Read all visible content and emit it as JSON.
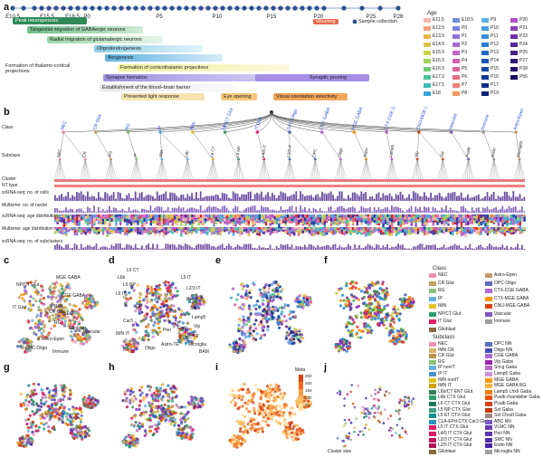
{
  "panel_labels": [
    "a",
    "b",
    "c",
    "d",
    "e",
    "f",
    "g",
    "h",
    "i",
    "j"
  ],
  "timeline": {
    "ticks": [
      "E10.5",
      "E15.5",
      "E18.5",
      "P0",
      "P5",
      "P10",
      "P15",
      "P20",
      "P25",
      "P28"
    ],
    "ticks_small": [
      "E11.5"
    ],
    "sample_collection_label": "Sample collection",
    "weaning_label": "Weaning"
  },
  "dev_processes": [
    {
      "label": "Peak neurogenesis",
      "color": "#2e8b57"
    },
    {
      "label": "Tangential migration of GABAergic neurons",
      "color": "#6fc08a"
    },
    {
      "label": "Radial migration of glutamatergic neurons",
      "color": "#9ad7a6"
    },
    {
      "label": "Oligodendrogenesis",
      "color": "#8fd0e8"
    },
    {
      "label": "Axogenesis",
      "color": "#5fb0e0"
    },
    {
      "label": "Formation of thalamo-cortical projections",
      "color": "#ffffff"
    },
    {
      "label": "Formation of corticothalamic projections",
      "color": "#f3f0a0"
    },
    {
      "label": "Synapse formation",
      "color": "#9b8fe0"
    },
    {
      "label": "Synaptic pruning",
      "color": "#a58ee6"
    },
    {
      "label": "Establishment of the blood–brain barrier",
      "color": "#e8e8e8"
    },
    {
      "label": "Prevented light response",
      "color": "#f7e3b0"
    },
    {
      "label": "Eye opening",
      "color": "#f7c87a"
    },
    {
      "label": "Visual orientation selectivity",
      "color": "#f2a65a"
    }
  ],
  "age_legend": {
    "title": "Age",
    "items": [
      {
        "label": "E11.5",
        "color": "#f6b8b0"
      },
      {
        "label": "E12.5",
        "color": "#f4a07a"
      },
      {
        "label": "E13.5",
        "color": "#e6b54a"
      },
      {
        "label": "E14.5",
        "color": "#e0c24a"
      },
      {
        "label": "E15.5",
        "color": "#c8d24a"
      },
      {
        "label": "E16.5",
        "color": "#9ed25a"
      },
      {
        "label": "E16.5",
        "color": "#6fcc72"
      },
      {
        "label": "E17.0",
        "color": "#4cc49a"
      },
      {
        "label": "E17.5",
        "color": "#3fb8b8"
      },
      {
        "label": "E18",
        "color": "#3aa6d8"
      },
      {
        "label": "E18.5",
        "color": "#6a8fe0"
      },
      {
        "label": "P0",
        "color": "#7b7fe6"
      },
      {
        "label": "P1",
        "color": "#8f72e0"
      },
      {
        "label": "P2",
        "color": "#a86ad8"
      },
      {
        "label": "P3",
        "color": "#c064c8"
      },
      {
        "label": "P4",
        "color": "#d461b0"
      },
      {
        "label": "P5",
        "color": "#e06298"
      },
      {
        "label": "P6",
        "color": "#e86c80"
      },
      {
        "label": "P7",
        "color": "#ef8070"
      },
      {
        "label": "P8",
        "color": "#f39860"
      },
      {
        "label": "P9",
        "color": "#5ab0e8"
      },
      {
        "label": "P10",
        "color": "#4a9ee0"
      },
      {
        "label": "P11",
        "color": "#3c8cd8"
      },
      {
        "label": "P12",
        "color": "#2f7ace"
      },
      {
        "label": "P13",
        "color": "#2468c2"
      },
      {
        "label": "P14",
        "color": "#1a56b4"
      },
      {
        "label": "P15",
        "color": "#1446a4"
      },
      {
        "label": "P16",
        "color": "#103896"
      },
      {
        "label": "P17",
        "color": "#0c2c86"
      },
      {
        "label": "P19",
        "color": "#082078"
      },
      {
        "label": "P20",
        "color": "#b050c8"
      },
      {
        "label": "P21",
        "color": "#9040b8"
      },
      {
        "label": "P23",
        "color": "#7030a8"
      },
      {
        "label": "P24",
        "color": "#582898"
      },
      {
        "label": "P25",
        "color": "#402088"
      },
      {
        "label": "P27",
        "color": "#301878"
      },
      {
        "label": "P28",
        "color": "#241068"
      },
      {
        "label": "P56",
        "color": "#180858"
      }
    ]
  },
  "panel_b": {
    "row_labels": [
      "Class",
      "Subclass",
      "Cluster",
      "NT type",
      "scRNA-seq:\nno. of cells",
      "Multiome:\nno. of nuclei",
      "scRNA-seq:\nage distribution",
      "Multiome:\nage distribution",
      "scRNA-seq:\nno. of subclusters"
    ],
    "class_labels": [
      "NEC",
      "CR Glut",
      "RG",
      "IP",
      "IMN",
      "NP/CT Glut",
      "IT Glut",
      "OPC-Oligo",
      "CGE GABA",
      "MGE GABA",
      "CTX-CGE GABA",
      "CNU-MGE GABA",
      "Vascular",
      "Immune",
      "Astro-Epen"
    ],
    "subclass_labels": [
      "NEC",
      "CR",
      "RG",
      "IP",
      "IMN",
      "L6b",
      "L6 CT",
      "L5 NP",
      "L4/5 IT",
      "L2/3 IT",
      "OPC",
      "Oligo",
      "Astro",
      "Lamp5",
      "Vip",
      "Sst",
      "Pvalb",
      "Endo",
      "Microglia"
    ]
  },
  "umap_panels": {
    "c": {
      "labels": [
        "NP/CT Glut",
        "MGE GABA",
        "CGE GABA",
        "IT Glut",
        "NEC",
        "CR Glut",
        "RG",
        "Glioblast",
        "Vascular",
        "Astro-Epen",
        "IMN",
        "OPC-Oligo",
        "Immune"
      ]
    },
    "d": {
      "labels": [
        "L6 CT",
        "L6b",
        "L5 NP",
        "L5 IT",
        "L2/3 IT",
        "L6 IT",
        "Pvalb",
        "Sst",
        "Lamp5",
        "Vip",
        "Sncg",
        "Oligo",
        "Astro-TE",
        "Microglia",
        "BAM",
        "Endo",
        "VLMC",
        "Peri",
        "Car3",
        "CR",
        "IMN IT"
      ]
    },
    "i": {
      "title": "Meta",
      "ticks": [
        "250",
        "200",
        "150",
        "100",
        "50"
      ]
    },
    "j": {
      "caption": "Cluster size"
    }
  },
  "class_legend": {
    "title": "Class",
    "items": [
      {
        "label": "NEC",
        "color": "#f48fb1"
      },
      {
        "label": "CR Glut",
        "color": "#c0a060"
      },
      {
        "label": "RG",
        "color": "#8ec07c"
      },
      {
        "label": "IP",
        "color": "#64b0e0"
      },
      {
        "label": "IMN",
        "color": "#e3c020"
      },
      {
        "label": "NP/CT Glut",
        "color": "#2f9e6f"
      },
      {
        "label": "IT Glut",
        "color": "#e91e63"
      },
      {
        "label": "Glioblast",
        "color": "#8a6d3b"
      },
      {
        "label": "Astro-Epen",
        "color": "#c49a6c"
      },
      {
        "label": "OPC-Oligo",
        "color": "#5b6bc0"
      },
      {
        "label": "CTX-CGE GABA",
        "color": "#b565d8"
      },
      {
        "label": "CTX-MGE GABA",
        "color": "#ff9800"
      },
      {
        "label": "CNU-MGE GABA",
        "color": "#d84315"
      },
      {
        "label": "Vascular",
        "color": "#7e57c2"
      },
      {
        "label": "Immune",
        "color": "#9e9e9e"
      }
    ]
  },
  "subclass_legend": {
    "title": "Subclass",
    "items": [
      {
        "label": "NEC",
        "color": "#f48fb1"
      },
      {
        "label": "IMN CR",
        "color": "#d9b36c"
      },
      {
        "label": "CR Glut",
        "color": "#b8904a"
      },
      {
        "label": "RG",
        "color": "#8ec07c"
      },
      {
        "label": "IP nonIT",
        "color": "#64b0e0"
      },
      {
        "label": "IP IT",
        "color": "#4d8fc8"
      },
      {
        "label": "IMN nonIT",
        "color": "#e3c020"
      },
      {
        "label": "IMN IT",
        "color": "#d1a000"
      },
      {
        "label": "L6b/CT ENT Glut",
        "color": "#3b7d5a"
      },
      {
        "label": "L6b CTX Glut",
        "color": "#2f9e6f"
      },
      {
        "label": "L6 CT CTX Glut",
        "color": "#1f7a55"
      },
      {
        "label": "L5 NP CTX Glut",
        "color": "#40a080"
      },
      {
        "label": "L5 ET CTX Glut",
        "color": "#158f8f"
      },
      {
        "label": "CLA-EPd-CTX Car3 Glut",
        "color": "#2a8fbf"
      },
      {
        "label": "L5 IT CTX Glut",
        "color": "#e91e63"
      },
      {
        "label": "L4/5 IT CTX Glut",
        "color": "#d81b60"
      },
      {
        "label": "L2/3 IT CTX Glut",
        "color": "#c2185b"
      },
      {
        "label": "L2/5 IT CTX Glut",
        "color": "#ad1457"
      },
      {
        "label": "Glioblast",
        "color": "#8a6d3b"
      },
      {
        "label": "OPC NN",
        "color": "#5b6bc0"
      },
      {
        "label": "Oligo NN",
        "color": "#3f51b5"
      },
      {
        "label": "CGE GABA",
        "color": "#b565d8"
      },
      {
        "label": "Vip Gaba",
        "color": "#9c27b0"
      },
      {
        "label": "Sncg Gaba",
        "color": "#ba68c8"
      },
      {
        "label": "Lamp5 Gaba",
        "color": "#ce93d8"
      },
      {
        "label": "MGE GABA",
        "color": "#ff9800"
      },
      {
        "label": "MGE GABA RG",
        "color": "#ffb74d"
      },
      {
        "label": "Lamp5 Lhx6 Gaba",
        "color": "#f57c00"
      },
      {
        "label": "Pvalb chandelier Gaba",
        "color": "#e65100"
      },
      {
        "label": "Pvalb Gaba",
        "color": "#d84315"
      },
      {
        "label": "Sst Gaba",
        "color": "#bf360c"
      },
      {
        "label": "Sst Chodl Gaba",
        "color": "#a1887f"
      },
      {
        "label": "ABC NN",
        "color": "#7e57c2"
      },
      {
        "label": "VLMC NN",
        "color": "#673ab7"
      },
      {
        "label": "Peri NN",
        "color": "#5e35b1"
      },
      {
        "label": "SMC NN",
        "color": "#512da8"
      },
      {
        "label": "Endo NN",
        "color": "#4527a0"
      },
      {
        "label": "Microglia NN",
        "color": "#9e9e9e"
      }
    ]
  },
  "colors": {
    "timeline_dot": "#2f4f8f",
    "weaning": "#e8664a"
  }
}
